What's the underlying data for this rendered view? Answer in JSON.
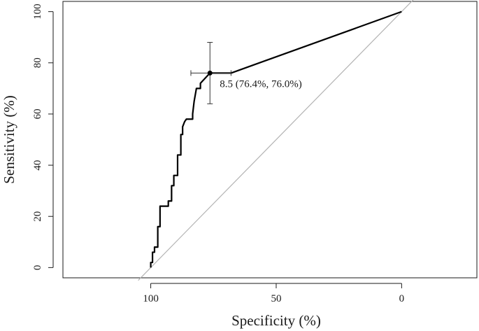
{
  "chart_data": {
    "type": "line",
    "title": "",
    "xlabel": "Specificity (%)",
    "ylabel": "Sensitivity (%)",
    "x_reversed": true,
    "xlim": [
      135,
      -30
    ],
    "ylim": [
      -4,
      104
    ],
    "xticks": [
      100,
      50,
      0
    ],
    "yticks": [
      0,
      20,
      40,
      60,
      80,
      100
    ],
    "grid": false,
    "reference_line": {
      "x": [
        100,
        0
      ],
      "y": [
        0,
        100
      ],
      "color": "#b3b3b3"
    },
    "series": [
      {
        "color": "#000000",
        "x": [
          100,
          100,
          99.3,
          99.3,
          98.5,
          98.5,
          97.2,
          97.2,
          96.3,
          96.3,
          93.0,
          93.0,
          91.7,
          91.7,
          90.8,
          90.8,
          89.3,
          89.3,
          88.0,
          88.0,
          87.3,
          87.3,
          86.5,
          85.8,
          84.7,
          83.3,
          83.3,
          82.7,
          81.8,
          80.2,
          80.2,
          76.4,
          76.4,
          68.0,
          0
        ],
        "y": [
          0,
          2,
          2,
          6,
          6,
          8,
          8,
          16,
          16,
          24,
          24,
          26,
          26,
          32,
          32,
          36,
          36,
          44,
          44,
          52,
          52,
          55,
          57,
          58,
          58,
          58,
          60,
          65,
          70,
          70,
          72,
          76,
          76,
          76,
          100
        ]
      }
    ],
    "optimal_point": {
      "x": 76.4,
      "y": 76.0,
      "x_ci": [
        68.0,
        84.0
      ],
      "y_ci": [
        64.0,
        88.0
      ],
      "label": "8.5 (76.4%, 76.0%)"
    }
  }
}
